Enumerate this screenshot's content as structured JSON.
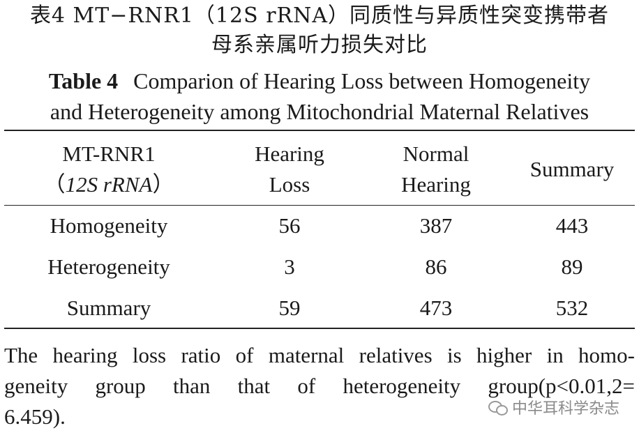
{
  "title_cn": {
    "line1": "表4  MT−RNR1（12S rRNA）同质性与异质性突变携带者",
    "line2": "母系亲属听力损失对比"
  },
  "title_en": {
    "label": "Table 4",
    "line1": "Comparion of Hearing Loss between Homogeneity",
    "line2": "and Heterogeneity among Mitochondrial Maternal Relatives"
  },
  "table": {
    "headers": {
      "col0_line1": "MT-RNR1",
      "col0_line2_open": "（",
      "col0_line2_italic": "12S rRNA",
      "col0_line2_close": "）",
      "col1_line1": "Hearing",
      "col1_line2": "Loss",
      "col2_line1": "Normal",
      "col2_line2": "Hearing",
      "col3": "Summary"
    },
    "rows": [
      {
        "label": "Homogeneity",
        "hearing_loss": "56",
        "normal_hearing": "387",
        "summary": "443"
      },
      {
        "label": "Heterogeneity",
        "hearing_loss": "3",
        "normal_hearing": "86",
        "summary": "89"
      },
      {
        "label": "Summary",
        "hearing_loss": "59",
        "normal_hearing": "473",
        "summary": "532"
      }
    ]
  },
  "note": {
    "line1": "The hearing loss ratio of maternal relatives is higher in homo-",
    "line2": "geneity group than that of heterogeneity group(p<0.01,2=",
    "line3": "6.459)."
  },
  "watermark": {
    "text": "中华耳科学杂志",
    "icon": "wechat-icon"
  }
}
